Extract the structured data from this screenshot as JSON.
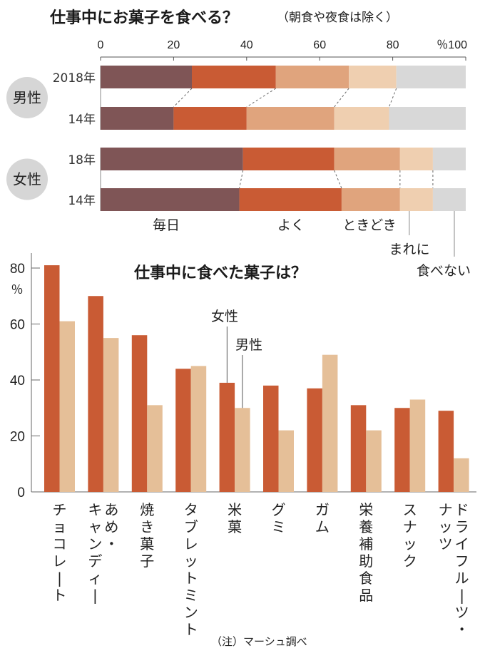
{
  "chart_data": [
    {
      "type": "bar",
      "orientation": "horizontal-stacked",
      "title": "仕事中にお菓子を食べる？",
      "subtitle": "（朝食や夜食は除く）",
      "xlim": [
        0,
        100
      ],
      "x_ticks": [
        "0",
        "20",
        "40",
        "60",
        "80",
        "％100"
      ],
      "groups": [
        {
          "name": "男性",
          "rows": [
            {
              "label": "2018年",
              "values": [
                25,
                23,
                20,
                13,
                19
              ]
            },
            {
              "label": "14年",
              "values": [
                20,
                20,
                24,
                15,
                21
              ]
            }
          ]
        },
        {
          "name": "女性",
          "rows": [
            {
              "label": "18年",
              "values": [
                39,
                25,
                18,
                9,
                9
              ]
            },
            {
              "label": "14年",
              "values": [
                38,
                28,
                16,
                9,
                9
              ]
            }
          ]
        }
      ],
      "segments": [
        "毎日",
        "よく",
        "ときどき",
        "まれに",
        "食べない"
      ],
      "colors": [
        "#7f5556",
        "#c95b34",
        "#e0a47d",
        "#efcfb0",
        "#d8d8d8"
      ]
    },
    {
      "type": "bar",
      "title": "仕事中に食べた菓子は？",
      "ylabel": "％",
      "ylim": [
        0,
        80
      ],
      "y_ticks": [
        "0",
        "20",
        "40",
        "60",
        "80"
      ],
      "categories": [
        "チョコレート",
        "あめ・キャンディー",
        "焼き菓子",
        "タブレットミント",
        "米菓",
        "グミ",
        "ガム",
        "栄養補助食品",
        "スナック",
        "ドライフルーツ・ナッツ"
      ],
      "category_lines": [
        [
          "チョコレート"
        ],
        [
          "あめ・",
          "キャンディー"
        ],
        [
          "焼き菓子"
        ],
        [
          "タブレットミント"
        ],
        [
          "米菓"
        ],
        [
          "グミ"
        ],
        [
          "ガム"
        ],
        [
          "栄養補助食品"
        ],
        [
          "スナック"
        ],
        [
          "ドライフルーツ・",
          "ナッツ"
        ]
      ],
      "series": [
        {
          "name": "女性",
          "color": "#c95b34",
          "values": [
            81,
            70,
            56,
            44,
            39,
            38,
            37,
            31,
            30,
            29
          ]
        },
        {
          "name": "男性",
          "color": "#e5bf98",
          "values": [
            61,
            55,
            31,
            45,
            30,
            22,
            49,
            22,
            33,
            12
          ]
        }
      ],
      "note": "（注）マーシュ調べ"
    }
  ]
}
